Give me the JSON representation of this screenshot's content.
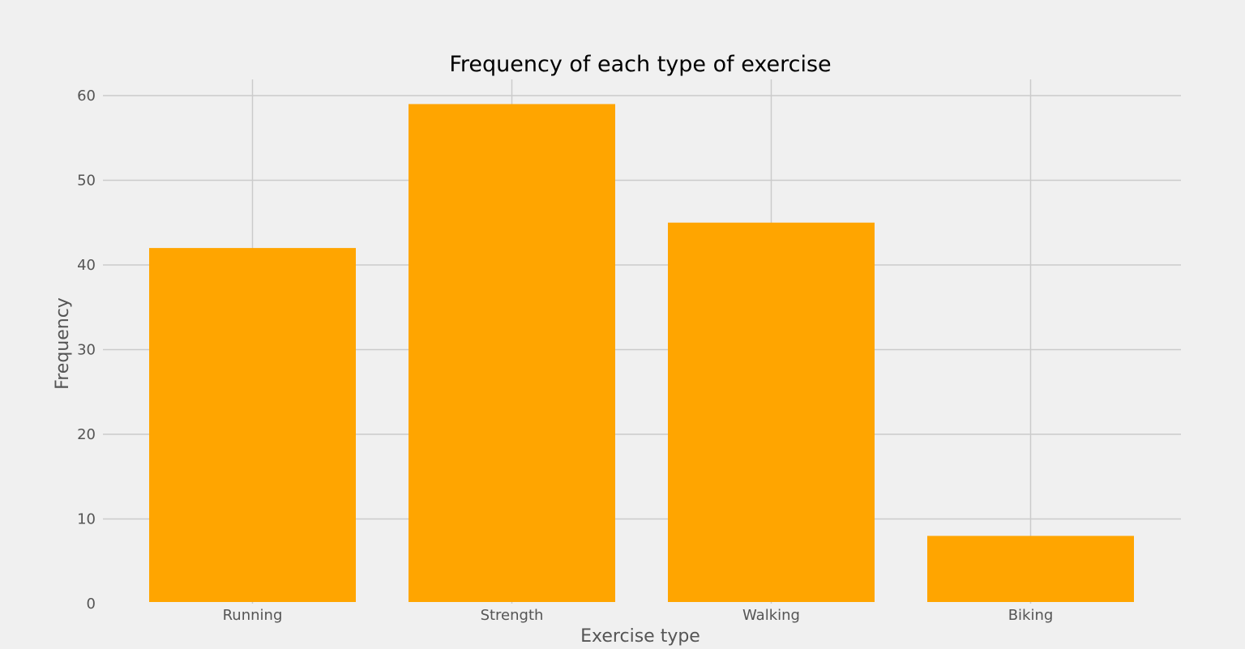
{
  "chart_data": {
    "type": "bar",
    "title": "Frequency of each type of exercise",
    "xlabel": "Exercise type",
    "ylabel": "Frequency",
    "categories": [
      "Running",
      "Strength",
      "Walking",
      "Biking"
    ],
    "values": [
      42,
      59,
      45,
      8
    ],
    "ylim": [
      0,
      62
    ],
    "yticks": [
      0,
      10,
      20,
      30,
      40,
      50,
      60
    ],
    "grid": true,
    "bar_color": "#ffa500",
    "background_color": "#f0f0f0",
    "grid_color": "#cbcbcb"
  }
}
